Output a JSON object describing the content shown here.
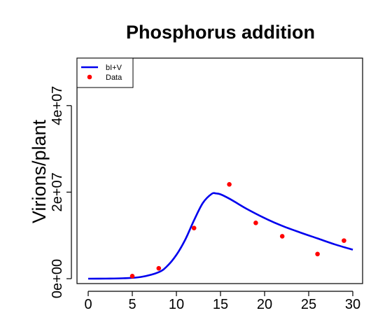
{
  "chart_data": {
    "type": "line",
    "title": "Phosphorus addition",
    "xlabel": "",
    "ylabel": "Virions/plant",
    "xlim": [
      0,
      30
    ],
    "ylim": [
      0,
      50000000
    ],
    "x_ticks": [
      0,
      5,
      10,
      15,
      20,
      25,
      30
    ],
    "x_tick_labels": [
      "0",
      "5",
      "10",
      "15",
      "20",
      "25",
      "30"
    ],
    "y_ticks": [
      0,
      20000000,
      40000000
    ],
    "y_tick_labels": [
      "0e+00",
      "2e+07",
      "4e+07"
    ],
    "grid": false,
    "legend_position": "top-left",
    "series": [
      {
        "name": "bI+V",
        "kind": "line",
        "color": "#0000ee",
        "x": [
          0,
          2,
          4,
          6,
          8,
          9,
          10,
          11,
          12,
          13,
          14,
          14.5,
          15,
          16,
          17,
          18,
          20,
          22,
          24,
          26,
          28,
          30
        ],
        "y": [
          0,
          20000,
          100000,
          400000,
          1500000,
          3000000,
          5500000,
          9000000,
          13500000,
          17500000,
          19600000,
          19700000,
          19500000,
          18500000,
          17300000,
          16100000,
          14000000,
          12200000,
          10700000,
          9300000,
          7900000,
          6700000
        ]
      },
      {
        "name": "Data",
        "kind": "points",
        "color": "#ff0000",
        "x": [
          5,
          8,
          12,
          16,
          19,
          22,
          26,
          29
        ],
        "y": [
          600000,
          2400000,
          11700000,
          21800000,
          12900000,
          9800000,
          5700000,
          8800000
        ]
      }
    ]
  }
}
